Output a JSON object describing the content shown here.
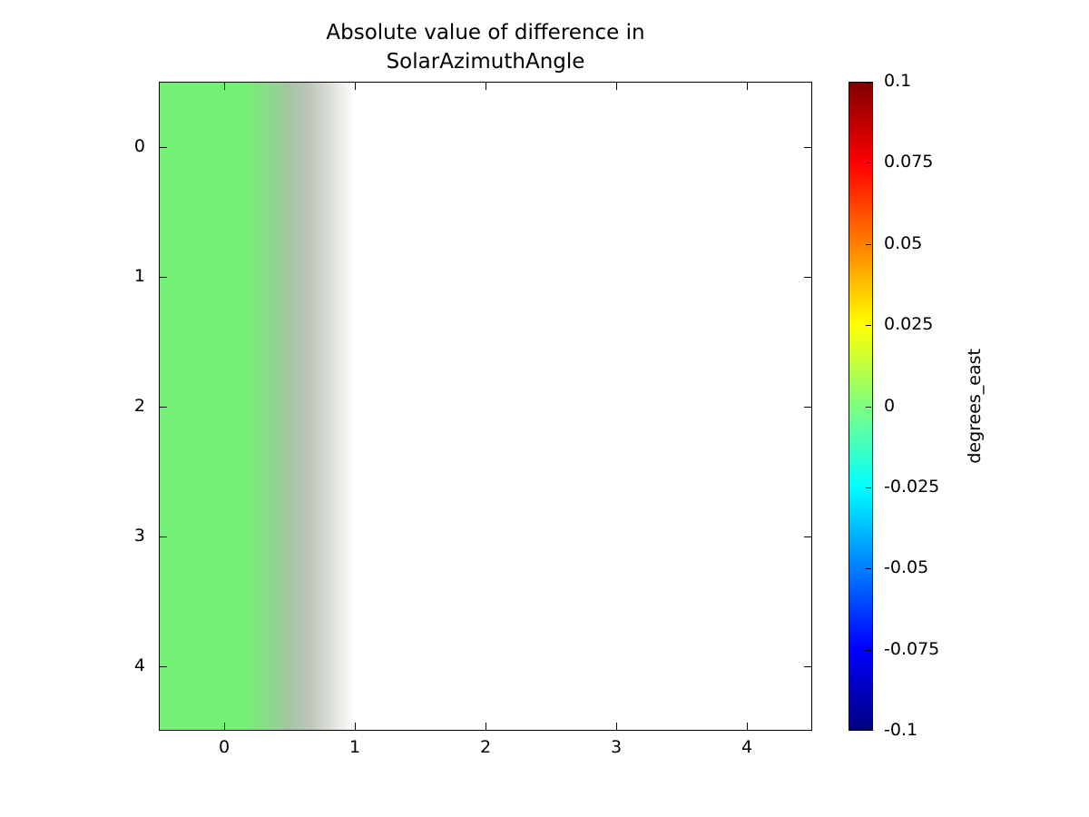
{
  "figure": {
    "background": "#ffffff",
    "text_color": "#000000"
  },
  "chart_data": {
    "type": "heatmap",
    "title_lines": [
      "Absolute value of difference in",
      "SolarAzimuthAngle"
    ],
    "x_tick_labels": [
      "0",
      "1",
      "2",
      "3",
      "4"
    ],
    "y_tick_labels": [
      "0",
      "1",
      "2",
      "3",
      "4"
    ],
    "x_range": [
      -0.5,
      4.5
    ],
    "y_range": [
      -0.5,
      4.5
    ],
    "y_axis_inverted": true,
    "grid": false,
    "values": [
      [
        0,
        null,
        null,
        null,
        null
      ],
      [
        0,
        null,
        null,
        null,
        null
      ],
      [
        0,
        null,
        null,
        null,
        null
      ],
      [
        0,
        null,
        null,
        null,
        null
      ],
      [
        0,
        null,
        null,
        null,
        null
      ]
    ],
    "value_note": "Column at x=0 has value ~0 (green); all other cells are missing/white; smoothing makes the green band fade through gray to white between x~0.3 and x~1",
    "zero_value_color": "#74f074",
    "heatmap_gradient": [
      {
        "pos": 0,
        "color": "#74f074"
      },
      {
        "pos": 13,
        "color": "#74f074"
      },
      {
        "pos": 17,
        "color": "#8ed88d"
      },
      {
        "pos": 20,
        "color": "#a7c3a4"
      },
      {
        "pos": 23,
        "color": "#bec6bb"
      },
      {
        "pos": 26,
        "color": "#d9dcd6"
      },
      {
        "pos": 28.5,
        "color": "#f2f3f1"
      },
      {
        "pos": 30,
        "color": "#ffffff"
      },
      {
        "pos": 100,
        "color": "#ffffff"
      }
    ],
    "colorbar": {
      "label": "degrees_east",
      "tick_labels": [
        "0.1",
        "0.075",
        "0.05",
        "0.025",
        "0",
        "-0.025",
        "-0.05",
        "-0.075",
        "-0.1"
      ],
      "range": [
        -0.1,
        0.1
      ],
      "colormap": "jet",
      "gradient": [
        {
          "pos": 0,
          "color": "#7f0000"
        },
        {
          "pos": 12.5,
          "color": "#ff0000"
        },
        {
          "pos": 37.5,
          "color": "#ffff00"
        },
        {
          "pos": 62.5,
          "color": "#00ffff"
        },
        {
          "pos": 87.5,
          "color": "#0000ff"
        },
        {
          "pos": 100,
          "color": "#00007f"
        }
      ]
    }
  }
}
